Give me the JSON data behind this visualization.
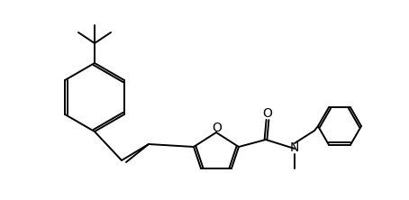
{
  "bg_color": "#ffffff",
  "line_color": "#000000",
  "line_width": 1.4,
  "font_size": 10,
  "figsize": [
    4.54,
    2.22
  ],
  "dpi": 100,
  "xlim": [
    0,
    454
  ],
  "ylim": [
    0,
    222
  ]
}
